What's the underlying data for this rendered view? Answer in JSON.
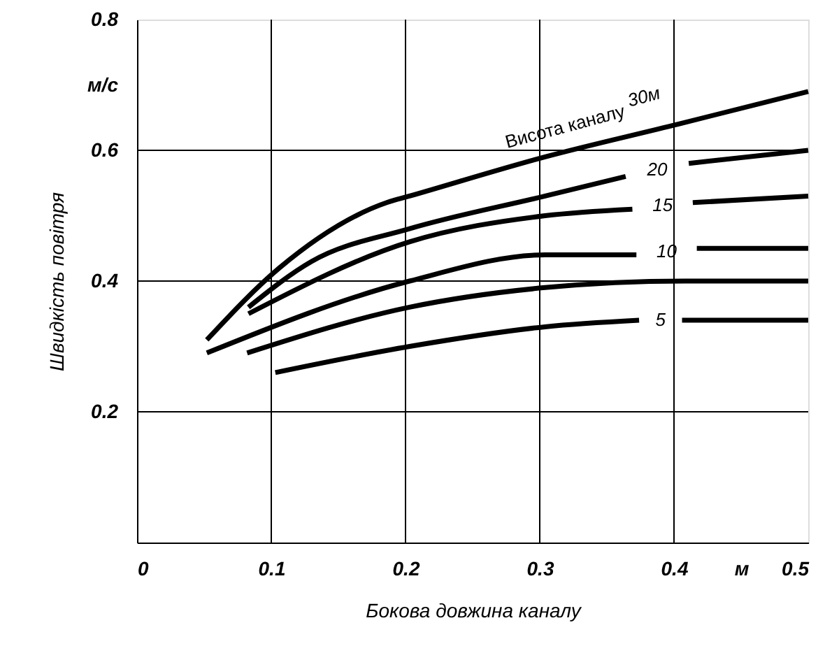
{
  "chart_data": {
    "type": "line",
    "xlabel": "Бокова довжина каналу",
    "ylabel": "Швидкість повітря",
    "xlim": [
      0,
      0.5
    ],
    "ylim": [
      0,
      0.8
    ],
    "xticks": [
      0,
      0.1,
      0.2,
      0.3,
      0.4,
      {
        "value": 0.45,
        "label": "м"
      },
      0.5
    ],
    "yticks": [
      0.2,
      0.4,
      0.6,
      {
        "value": 0.7,
        "label": "м/с"
      },
      0.8
    ],
    "grid": true,
    "marker": "none",
    "line_style": "solid",
    "annotations": [
      "Висота каналу"
    ],
    "series": [
      {
        "name": "30м",
        "color": "#000000",
        "x": [
          0.052,
          0.106,
          0.186,
          0.203,
          0.304,
          0.403,
          0.5
        ],
        "values": [
          0.31,
          0.42,
          0.52,
          0.53,
          0.59,
          0.64,
          0.69
        ]
      },
      {
        "name": "20",
        "color": "#000000",
        "x": [
          0.083,
          0.13,
          0.203,
          0.304,
          0.364,
          0.39,
          0.411,
          0.5
        ],
        "values": [
          0.36,
          0.43,
          0.48,
          0.53,
          0.56,
          null,
          0.58,
          0.6
        ]
      },
      {
        "name": "15",
        "color": "#000000",
        "x": [
          0.083,
          0.203,
          0.304,
          0.369,
          0.39,
          0.414,
          0.5
        ],
        "values": [
          0.35,
          0.46,
          0.5,
          0.51,
          null,
          0.52,
          0.53
        ]
      },
      {
        "name": "10",
        "color": "#000000",
        "x": [
          0.052,
          0.203,
          0.304,
          0.372,
          0.395,
          0.417,
          0.5
        ],
        "values": [
          0.29,
          0.4,
          0.44,
          0.44,
          null,
          0.45,
          0.45
        ]
      },
      {
        "color": "#000000",
        "x": [
          0.082,
          0.203,
          0.304,
          0.408,
          0.5
        ],
        "values": [
          0.29,
          0.36,
          0.39,
          0.4,
          0.4
        ]
      },
      {
        "name": "5",
        "color": "#000000",
        "x": [
          0.103,
          0.203,
          0.304,
          0.374,
          0.39,
          0.406,
          0.5
        ],
        "values": [
          0.26,
          0.3,
          0.33,
          0.34,
          null,
          0.34,
          0.34
        ]
      }
    ]
  }
}
